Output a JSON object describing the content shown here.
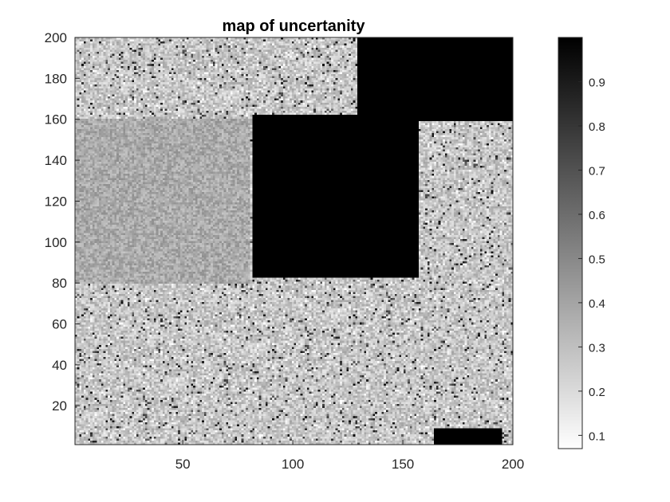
{
  "chart_data": {
    "type": "heatmap",
    "title": "map of uncertanity",
    "x_ticks": [
      50,
      100,
      150,
      200
    ],
    "y_ticks": [
      20,
      40,
      60,
      80,
      100,
      120,
      140,
      160,
      180,
      200
    ],
    "xlim": [
      1,
      200
    ],
    "ylim": [
      1,
      200
    ],
    "grid": [
      200,
      200
    ],
    "colormap": "gray (reversed): low = white, high = black",
    "color_range": [
      0.07,
      1.0
    ],
    "colorbar_ticks": [
      0.1,
      0.2,
      0.3,
      0.4,
      0.5,
      0.6,
      0.7,
      0.8,
      0.9
    ],
    "colorbar_placement": "right",
    "regions": [
      {
        "name": "central black square",
        "x": [
          82,
          157
        ],
        "y": [
          83,
          162
        ],
        "value": 1.0
      },
      {
        "name": "top-right black region",
        "x": [
          130,
          200
        ],
        "y": [
          160,
          200
        ],
        "value": 1.0
      },
      {
        "name": "left mid gray block",
        "x": [
          1,
          80
        ],
        "y": [
          80,
          160
        ],
        "value": 0.38
      },
      {
        "name": "background speckled texture",
        "value": 0.28
      },
      {
        "name": "bottom-right black blob",
        "x": [
          165,
          195
        ],
        "y": [
          1,
          8
        ],
        "value": 1.0
      }
    ],
    "background_level": 0.28,
    "colors": {
      "axis": "#262626",
      "text": "#262626"
    }
  }
}
